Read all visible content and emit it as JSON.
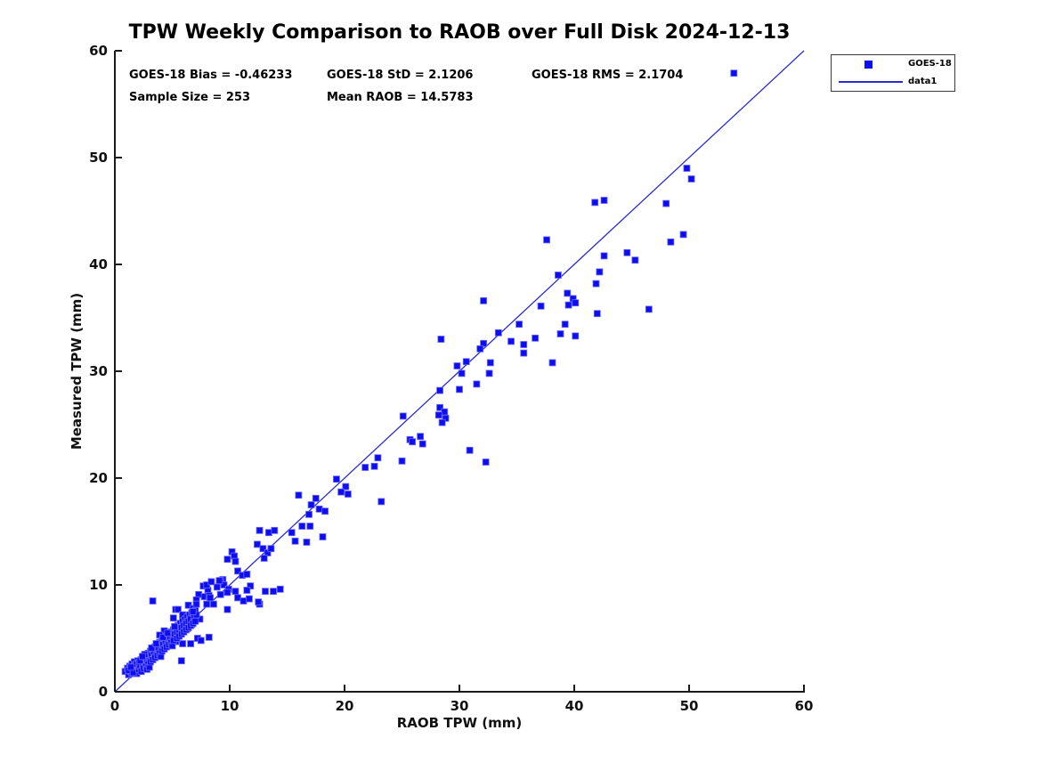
{
  "title": "TPW Weekly Comparison to RAOB over Full Disk 2024-12-13",
  "stats": {
    "bias": "GOES-18 Bias = -0.46233",
    "std": "GOES-18 StD = 2.1206",
    "rms": "GOES-18 RMS = 2.1704",
    "sample_size": "Sample Size = 253",
    "mean_raob": "Mean RAOB = 14.5783"
  },
  "legend": {
    "series1": "GOES-18",
    "series2": "data1"
  },
  "colors": {
    "marker": "#0d0df0",
    "marker_edge": "#6a6af8",
    "line": "#2b2bcc",
    "axis": "#1a1a1a",
    "text": "#000000"
  },
  "chart_data": {
    "type": "scatter",
    "title": "TPW Weekly Comparison to RAOB over Full Disk 2024-12-13",
    "xlabel": "RAOB TPW (mm)",
    "ylabel": "Measured TPW (mm)",
    "xlim": [
      0,
      60
    ],
    "ylim": [
      0,
      60
    ],
    "xticks": [
      0,
      10,
      20,
      30,
      40,
      50,
      60
    ],
    "yticks": [
      0,
      10,
      20,
      30,
      40,
      50,
      60
    ],
    "grid": false,
    "legend_position": "top-right-outside",
    "identity_line": {
      "name": "data1",
      "x": [
        0,
        60
      ],
      "y": [
        0,
        60
      ]
    },
    "series": [
      {
        "name": "GOES-18",
        "marker": "square",
        "points": [
          [
            53.9,
            57.9
          ],
          [
            49.8,
            49.0
          ],
          [
            50.2,
            48.0
          ],
          [
            41.8,
            45.8
          ],
          [
            42.6,
            46.0
          ],
          [
            48.0,
            45.7
          ],
          [
            37.6,
            42.3
          ],
          [
            49.5,
            42.8
          ],
          [
            48.4,
            42.1
          ],
          [
            44.6,
            41.1
          ],
          [
            45.3,
            40.4
          ],
          [
            42.6,
            40.8
          ],
          [
            42.2,
            39.3
          ],
          [
            38.6,
            39.0
          ],
          [
            41.9,
            38.2
          ],
          [
            46.5,
            35.8
          ],
          [
            39.4,
            37.3
          ],
          [
            39.9,
            36.8
          ],
          [
            39.5,
            36.2
          ],
          [
            40.1,
            36.4
          ],
          [
            37.1,
            36.1
          ],
          [
            42.0,
            35.4
          ],
          [
            32.1,
            36.6
          ],
          [
            35.2,
            34.4
          ],
          [
            39.2,
            34.4
          ],
          [
            38.8,
            33.5
          ],
          [
            40.1,
            33.3
          ],
          [
            33.4,
            33.6
          ],
          [
            36.6,
            33.1
          ],
          [
            34.5,
            32.8
          ],
          [
            35.6,
            32.5
          ],
          [
            35.6,
            31.7
          ],
          [
            32.1,
            32.6
          ],
          [
            31.8,
            32.1
          ],
          [
            28.4,
            33.0
          ],
          [
            38.1,
            30.8
          ],
          [
            30.6,
            30.9
          ],
          [
            29.8,
            30.5
          ],
          [
            32.7,
            30.8
          ],
          [
            32.6,
            29.8
          ],
          [
            30.2,
            29.8
          ],
          [
            31.5,
            28.8
          ],
          [
            30.0,
            28.3
          ],
          [
            28.3,
            28.2
          ],
          [
            25.1,
            25.8
          ],
          [
            28.3,
            26.6
          ],
          [
            28.7,
            26.2
          ],
          [
            28.2,
            25.9
          ],
          [
            28.8,
            25.6
          ],
          [
            28.5,
            25.2
          ],
          [
            25.7,
            23.6
          ],
          [
            25.9,
            23.4
          ],
          [
            26.6,
            23.9
          ],
          [
            26.8,
            23.2
          ],
          [
            30.9,
            22.6
          ],
          [
            32.3,
            21.5
          ],
          [
            22.9,
            21.9
          ],
          [
            22.6,
            21.1
          ],
          [
            21.8,
            21.0
          ],
          [
            25.0,
            21.6
          ],
          [
            19.3,
            19.9
          ],
          [
            20.1,
            19.2
          ],
          [
            19.7,
            18.7
          ],
          [
            20.3,
            18.5
          ],
          [
            23.2,
            17.8
          ],
          [
            16.0,
            18.4
          ],
          [
            17.5,
            18.1
          ],
          [
            17.1,
            17.5
          ],
          [
            17.8,
            17.1
          ],
          [
            18.3,
            16.9
          ],
          [
            16.9,
            16.6
          ],
          [
            16.3,
            15.5
          ],
          [
            17.0,
            15.5
          ],
          [
            15.4,
            14.9
          ],
          [
            18.1,
            14.5
          ],
          [
            15.7,
            14.1
          ],
          [
            16.7,
            14.0
          ],
          [
            12.6,
            15.1
          ],
          [
            13.4,
            14.9
          ],
          [
            13.9,
            15.1
          ],
          [
            12.4,
            13.8
          ],
          [
            12.9,
            13.4
          ],
          [
            13.3,
            13.0
          ],
          [
            13.6,
            13.4
          ],
          [
            13.0,
            12.5
          ],
          [
            10.2,
            13.1
          ],
          [
            10.4,
            12.7
          ],
          [
            9.8,
            12.4
          ],
          [
            10.5,
            12.2
          ],
          [
            10.7,
            11.3
          ],
          [
            11.1,
            10.9
          ],
          [
            11.5,
            11.0
          ],
          [
            9.4,
            10.5
          ],
          [
            9.2,
            10.4
          ],
          [
            9.5,
            10.0
          ],
          [
            8.9,
            9.8
          ],
          [
            9.9,
            9.6
          ],
          [
            10.5,
            9.4
          ],
          [
            13.1,
            9.4
          ],
          [
            13.8,
            9.4
          ],
          [
            14.4,
            9.6
          ],
          [
            11.8,
            9.9
          ],
          [
            11.5,
            9.5
          ],
          [
            10.7,
            8.8
          ],
          [
            11.2,
            8.5
          ],
          [
            12.6,
            8.2
          ],
          [
            11.7,
            8.7
          ],
          [
            12.5,
            8.4
          ],
          [
            3.3,
            8.5
          ],
          [
            7.7,
            9.9
          ],
          [
            8.1,
            9.5
          ],
          [
            7.3,
            9.1
          ],
          [
            7.8,
            8.9
          ],
          [
            8.2,
            9.0
          ],
          [
            8.0,
            10.0
          ],
          [
            8.4,
            10.3
          ],
          [
            9.1,
            10.4
          ],
          [
            8.3,
            8.8
          ],
          [
            8.6,
            8.2
          ],
          [
            8.0,
            8.2
          ],
          [
            9.2,
            9.1
          ],
          [
            9.8,
            9.3
          ],
          [
            7.1,
            8.6
          ],
          [
            9.8,
            7.7
          ],
          [
            5.3,
            7.7
          ],
          [
            5.5,
            7.7
          ],
          [
            5.9,
            7.2
          ],
          [
            5.1,
            6.9
          ],
          [
            6.4,
            8.1
          ],
          [
            6.8,
            7.8
          ],
          [
            7.1,
            8.2
          ],
          [
            6.1,
            6.5
          ],
          [
            6.7,
            6.3
          ],
          [
            6.3,
            5.9
          ],
          [
            5.7,
            5.8
          ],
          [
            4.3,
            5.7
          ],
          [
            4.7,
            5.3
          ],
          [
            3.9,
            5.3
          ],
          [
            7.1,
            7.0
          ],
          [
            7.4,
            6.8
          ],
          [
            5.3,
            4.7
          ],
          [
            5.9,
            4.5
          ],
          [
            6.6,
            4.5
          ],
          [
            7.2,
            5.0
          ],
          [
            7.5,
            4.8
          ],
          [
            8.2,
            5.1
          ],
          [
            5.8,
            2.9
          ],
          [
            0.9,
            1.9
          ],
          [
            1.1,
            2.2
          ],
          [
            1.2,
            1.6
          ],
          [
            1.3,
            2.4
          ],
          [
            1.4,
            1.9
          ],
          [
            1.5,
            2.6
          ],
          [
            1.5,
            1.7
          ],
          [
            1.6,
            2.2
          ],
          [
            1.7,
            2.8
          ],
          [
            1.8,
            2.0
          ],
          [
            1.8,
            2.5
          ],
          [
            1.9,
            1.7
          ],
          [
            2.0,
            2.3
          ],
          [
            2.0,
            2.9
          ],
          [
            1.2,
            2.0
          ],
          [
            1.6,
            1.8
          ],
          [
            1.9,
            2.6
          ],
          [
            1.4,
            2.3
          ],
          [
            2.1,
            2.1
          ],
          [
            2.1,
            2.7
          ],
          [
            2.2,
            2.4
          ],
          [
            2.3,
            3.0
          ],
          [
            2.3,
            1.9
          ],
          [
            2.4,
            2.6
          ],
          [
            2.5,
            2.2
          ],
          [
            2.5,
            3.2
          ],
          [
            2.6,
            2.8
          ],
          [
            2.7,
            2.4
          ],
          [
            2.7,
            3.4
          ],
          [
            2.8,
            3.0
          ],
          [
            2.8,
            2.1
          ],
          [
            2.9,
            3.6
          ],
          [
            2.9,
            2.6
          ],
          [
            3.0,
            3.2
          ],
          [
            3.0,
            2.3
          ],
          [
            2.2,
            2.9
          ],
          [
            2.6,
            3.5
          ],
          [
            2.4,
            3.3
          ],
          [
            3.1,
            3.8
          ],
          [
            3.1,
            2.8
          ],
          [
            3.2,
            3.4
          ],
          [
            3.3,
            4.0
          ],
          [
            3.3,
            3.0
          ],
          [
            3.4,
            3.6
          ],
          [
            3.5,
            4.2
          ],
          [
            3.5,
            3.2
          ],
          [
            3.6,
            3.8
          ],
          [
            3.7,
            4.4
          ],
          [
            3.7,
            3.4
          ],
          [
            3.8,
            4.0
          ],
          [
            3.9,
            4.6
          ],
          [
            3.9,
            3.6
          ],
          [
            4.0,
            4.2
          ],
          [
            4.0,
            3.3
          ],
          [
            3.2,
            4.1
          ],
          [
            3.6,
            4.5
          ],
          [
            4.1,
            4.8
          ],
          [
            4.1,
            3.8
          ],
          [
            4.2,
            4.4
          ],
          [
            4.3,
            5.0
          ],
          [
            4.3,
            4.0
          ],
          [
            4.4,
            4.6
          ],
          [
            4.5,
            5.2
          ],
          [
            4.5,
            4.2
          ],
          [
            4.6,
            4.8
          ],
          [
            4.7,
            5.4
          ],
          [
            4.7,
            4.4
          ],
          [
            4.8,
            5.0
          ],
          [
            4.9,
            5.6
          ],
          [
            4.9,
            4.6
          ],
          [
            5.0,
            5.2
          ],
          [
            5.0,
            4.3
          ],
          [
            4.2,
            5.1
          ],
          [
            4.6,
            5.5
          ],
          [
            5.1,
            5.8
          ],
          [
            5.1,
            4.8
          ],
          [
            5.2,
            5.4
          ],
          [
            5.3,
            6.0
          ],
          [
            5.4,
            5.0
          ],
          [
            5.4,
            5.6
          ],
          [
            5.5,
            6.2
          ],
          [
            5.6,
            5.2
          ],
          [
            5.6,
            5.8
          ],
          [
            5.7,
            6.4
          ],
          [
            5.8,
            5.4
          ],
          [
            5.8,
            6.0
          ],
          [
            5.9,
            6.6
          ],
          [
            6.0,
            5.6
          ],
          [
            6.0,
            6.2
          ],
          [
            5.2,
            6.1
          ],
          [
            6.1,
            6.8
          ],
          [
            6.2,
            5.8
          ],
          [
            6.2,
            6.4
          ],
          [
            6.3,
            7.0
          ],
          [
            6.4,
            6.0
          ],
          [
            6.4,
            6.6
          ],
          [
            6.5,
            7.2
          ],
          [
            6.6,
            6.2
          ],
          [
            6.6,
            6.8
          ],
          [
            6.7,
            7.4
          ],
          [
            6.8,
            6.4
          ],
          [
            6.9,
            7.0
          ],
          [
            7.0,
            7.6
          ],
          [
            7.0,
            6.6
          ],
          [
            7.1,
            7.2
          ],
          [
            6.8,
            7.5
          ]
        ]
      }
    ]
  }
}
